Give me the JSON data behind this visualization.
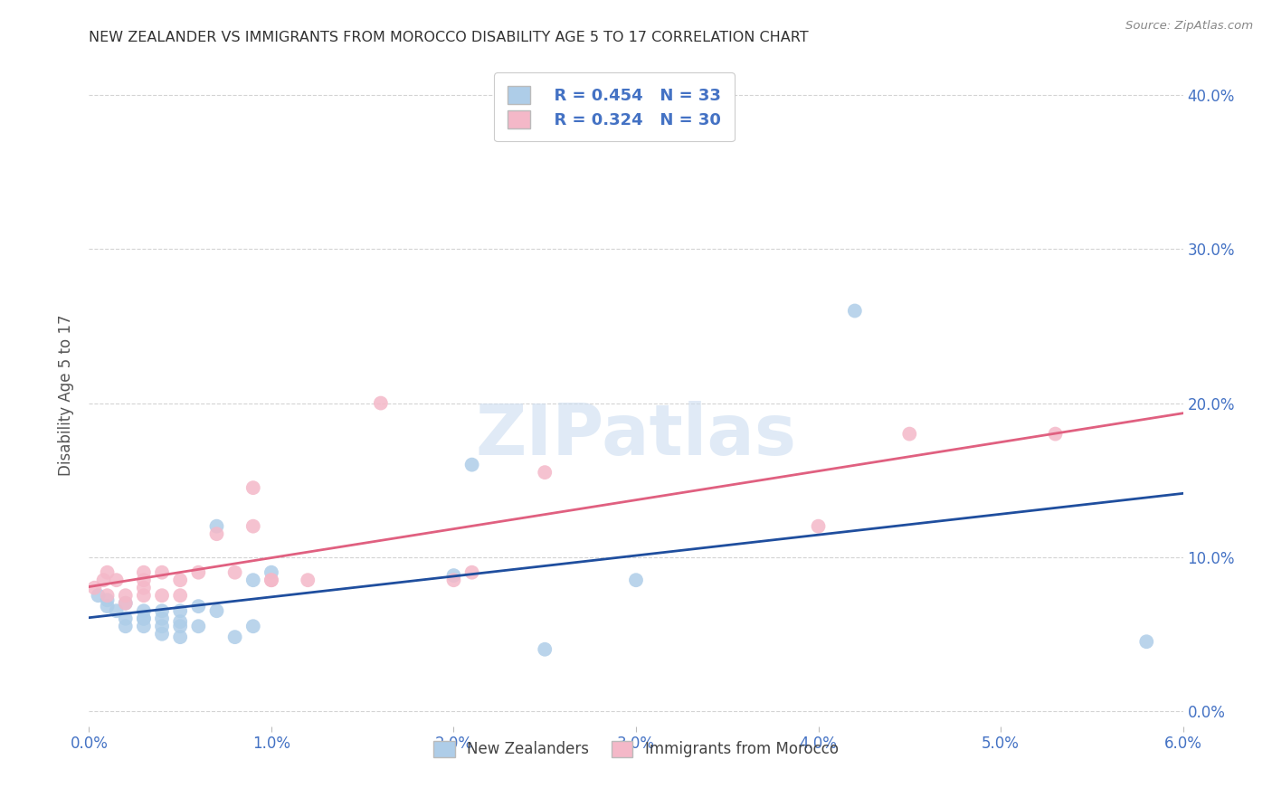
{
  "title": "NEW ZEALANDER VS IMMIGRANTS FROM MOROCCO DISABILITY AGE 5 TO 17 CORRELATION CHART",
  "source": "Source: ZipAtlas.com",
  "ylabel": "Disability Age 5 to 17",
  "xlim": [
    0.0,
    0.06
  ],
  "ylim": [
    -0.01,
    0.42
  ],
  "nz_color": "#aecde8",
  "nz_line_color": "#1f4e9e",
  "morocco_color": "#f4b8c8",
  "morocco_line_color": "#e06080",
  "legend_R_nz": "R = 0.454",
  "legend_N_nz": "N = 33",
  "legend_R_morocco": "R = 0.324",
  "legend_N_morocco": "N = 30",
  "legend_label_nz": "New Zealanders",
  "legend_label_morocco": "Immigrants from Morocco",
  "nz_x": [
    0.0005,
    0.001,
    0.001,
    0.0015,
    0.002,
    0.002,
    0.002,
    0.003,
    0.003,
    0.003,
    0.003,
    0.004,
    0.004,
    0.004,
    0.004,
    0.005,
    0.005,
    0.005,
    0.005,
    0.006,
    0.006,
    0.007,
    0.007,
    0.008,
    0.009,
    0.009,
    0.01,
    0.02,
    0.021,
    0.025,
    0.03,
    0.042,
    0.058
  ],
  "nz_y": [
    0.075,
    0.072,
    0.068,
    0.065,
    0.07,
    0.06,
    0.055,
    0.065,
    0.06,
    0.055,
    0.06,
    0.06,
    0.065,
    0.055,
    0.05,
    0.065,
    0.058,
    0.055,
    0.048,
    0.068,
    0.055,
    0.065,
    0.12,
    0.048,
    0.085,
    0.055,
    0.09,
    0.088,
    0.16,
    0.04,
    0.085,
    0.26,
    0.045
  ],
  "morocco_x": [
    0.0003,
    0.0008,
    0.001,
    0.001,
    0.0015,
    0.002,
    0.002,
    0.003,
    0.003,
    0.003,
    0.003,
    0.004,
    0.004,
    0.005,
    0.005,
    0.006,
    0.007,
    0.008,
    0.009,
    0.009,
    0.01,
    0.01,
    0.012,
    0.016,
    0.02,
    0.021,
    0.025,
    0.04,
    0.045,
    0.053
  ],
  "morocco_y": [
    0.08,
    0.085,
    0.09,
    0.075,
    0.085,
    0.075,
    0.07,
    0.085,
    0.09,
    0.075,
    0.08,
    0.09,
    0.075,
    0.075,
    0.085,
    0.09,
    0.115,
    0.09,
    0.12,
    0.145,
    0.085,
    0.085,
    0.085,
    0.2,
    0.085,
    0.09,
    0.155,
    0.12,
    0.18,
    0.18
  ],
  "background_color": "#ffffff",
  "grid_color": "#d0d0d0",
  "title_color": "#333333",
  "axis_label_color": "#4472c4",
  "watermark_text": "ZIPatlas",
  "watermark_color": "#ccddf0"
}
